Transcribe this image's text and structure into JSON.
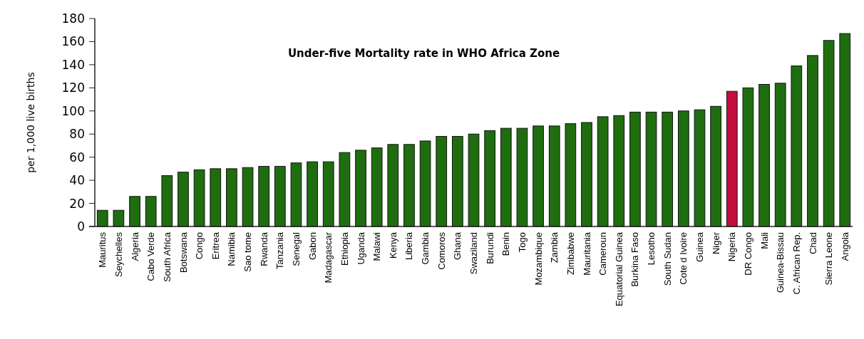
{
  "chart_data": {
    "type": "bar",
    "title": "Under-five Mortality rate in WHO Africa Zone",
    "ylabel": "per 1,000 live births",
    "categories": [
      "Mauritus",
      "Seychelles",
      "Algeria",
      "Cabo Verde",
      "South Africa",
      "Botswana",
      "Congo",
      "Eritrea",
      "Namibia",
      "Sao tome",
      "Rwanda",
      "Tanzania",
      "Senegal",
      "Gabon",
      "Madagascar",
      "Ethiopia",
      "Uganda",
      "Malawi",
      "Kenya",
      "Liberia",
      "Gambia",
      "Comoros",
      "Ghana",
      "Swaziland",
      "Burundi",
      "Benin",
      "Togo",
      "Mozambique",
      "Zambia",
      "Zimbabwe",
      "Mauritania",
      "Cameroun",
      "Equatorial Guinea",
      "Burkina Faso",
      "Lesotho",
      "South Sudan",
      "Cote d Ivoire",
      "Guinea",
      "Niger",
      "Nigeria",
      "DR Congo",
      "Mali",
      "Guinea-Bissau",
      "C. African Rep.",
      "Chad",
      "Sierra Leone",
      "Angola"
    ],
    "values": [
      14,
      14,
      26,
      26,
      44,
      47,
      49,
      50,
      50,
      51,
      52,
      52,
      55,
      56,
      56,
      64,
      66,
      68,
      71,
      71,
      74,
      78,
      78,
      80,
      83,
      85,
      85,
      87,
      87,
      89,
      90,
      95,
      96,
      99,
      99,
      99,
      100,
      101,
      104,
      117,
      120,
      123,
      124,
      139,
      148,
      161,
      167
    ],
    "colors": [
      "#1e6e10",
      "#1e6e10",
      "#1e6e10",
      "#1e6e10",
      "#1e6e10",
      "#1e6e10",
      "#1e6e10",
      "#1e6e10",
      "#1e6e10",
      "#1e6e10",
      "#1e6e10",
      "#1e6e10",
      "#1e6e10",
      "#1e6e10",
      "#1e6e10",
      "#1e6e10",
      "#1e6e10",
      "#1e6e10",
      "#1e6e10",
      "#1e6e10",
      "#1e6e10",
      "#1e6e10",
      "#1e6e10",
      "#1e6e10",
      "#1e6e10",
      "#1e6e10",
      "#1e6e10",
      "#1e6e10",
      "#1e6e10",
      "#1e6e10",
      "#1e6e10",
      "#1e6e10",
      "#1e6e10",
      "#1e6e10",
      "#1e6e10",
      "#1e6e10",
      "#1e6e10",
      "#1e6e10",
      "#1e6e10",
      "#c30d3c",
      "#1e6e10",
      "#1e6e10",
      "#1e6e10",
      "#1e6e10",
      "#1e6e10",
      "#1e6e10",
      "#1e6e10"
    ],
    "ylim": [
      0,
      180
    ],
    "yticks": [
      0,
      20,
      40,
      60,
      80,
      100,
      120,
      140,
      160,
      180
    ]
  }
}
